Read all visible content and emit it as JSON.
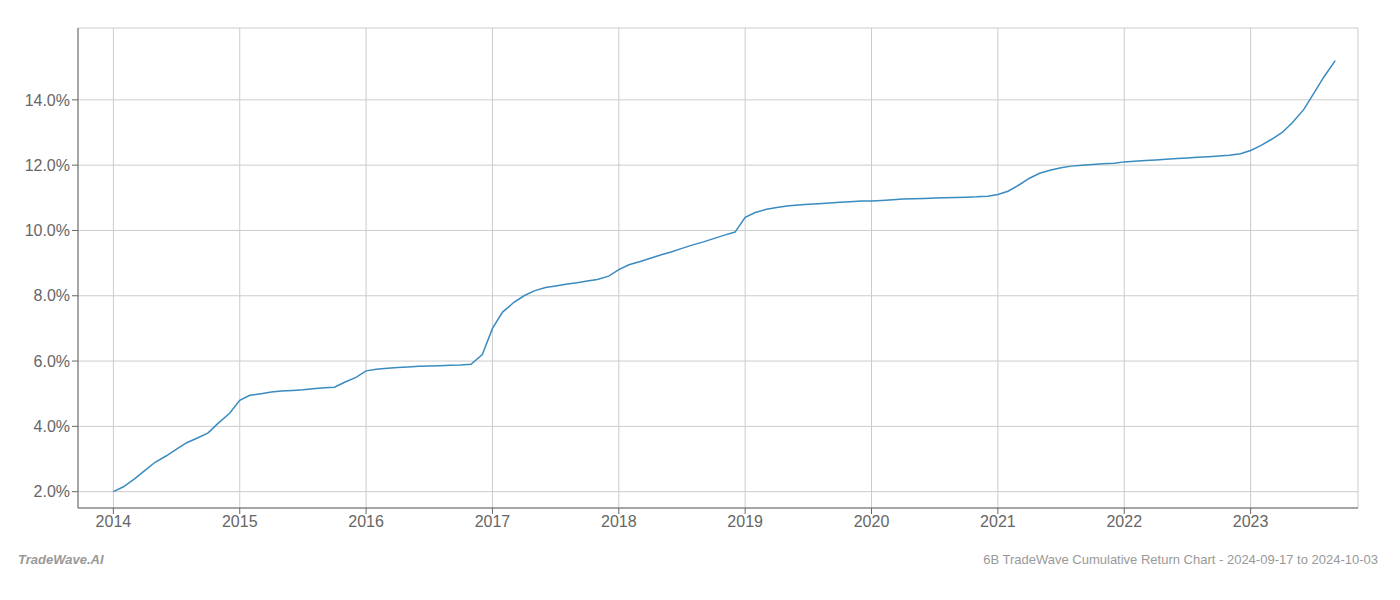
{
  "chart_data": {
    "type": "line",
    "title": "6B TradeWave Cumulative Return Chart - 2024-09-17 to 2024-10-03",
    "annotations": [
      "TradeWave.AI"
    ],
    "color": "#3a8bbf",
    "grid": true,
    "x": [
      2014.0,
      2014.08,
      2014.17,
      2014.25,
      2014.33,
      2014.42,
      2014.5,
      2014.58,
      2014.67,
      2014.75,
      2014.83,
      2014.92,
      2015.0,
      2015.08,
      2015.17,
      2015.25,
      2015.33,
      2015.42,
      2015.5,
      2015.58,
      2015.67,
      2015.75,
      2015.83,
      2015.92,
      2016.0,
      2016.08,
      2016.17,
      2016.25,
      2016.33,
      2016.42,
      2016.5,
      2016.58,
      2016.67,
      2016.75,
      2016.83,
      2016.92,
      2017.0,
      2017.08,
      2017.17,
      2017.25,
      2017.33,
      2017.42,
      2017.5,
      2017.58,
      2017.67,
      2017.75,
      2017.83,
      2017.92,
      2018.0,
      2018.08,
      2018.17,
      2018.25,
      2018.33,
      2018.42,
      2018.5,
      2018.58,
      2018.67,
      2018.75,
      2018.83,
      2018.92,
      2019.0,
      2019.08,
      2019.17,
      2019.25,
      2019.33,
      2019.42,
      2019.5,
      2019.58,
      2019.67,
      2019.75,
      2019.83,
      2019.92,
      2020.0,
      2020.08,
      2020.17,
      2020.25,
      2020.33,
      2020.42,
      2020.5,
      2020.58,
      2020.67,
      2020.75,
      2020.83,
      2020.92,
      2021.0,
      2021.08,
      2021.17,
      2021.25,
      2021.33,
      2021.42,
      2021.5,
      2021.58,
      2021.67,
      2021.75,
      2021.83,
      2021.92,
      2022.0,
      2022.08,
      2022.17,
      2022.25,
      2022.33,
      2022.42,
      2022.5,
      2022.58,
      2022.67,
      2022.75,
      2022.83,
      2022.92,
      2023.0,
      2023.08,
      2023.17,
      2023.25,
      2023.33,
      2023.42,
      2023.5,
      2023.58,
      2023.67
    ],
    "values": [
      2.0,
      2.15,
      2.4,
      2.65,
      2.9,
      3.1,
      3.3,
      3.5,
      3.65,
      3.8,
      4.1,
      4.4,
      4.8,
      4.95,
      5.0,
      5.05,
      5.08,
      5.1,
      5.12,
      5.15,
      5.18,
      5.2,
      5.35,
      5.5,
      5.7,
      5.75,
      5.78,
      5.8,
      5.82,
      5.84,
      5.85,
      5.86,
      5.87,
      5.88,
      5.9,
      6.2,
      7.0,
      7.5,
      7.8,
      8.0,
      8.15,
      8.25,
      8.3,
      8.35,
      8.4,
      8.45,
      8.5,
      8.6,
      8.8,
      8.95,
      9.05,
      9.15,
      9.25,
      9.35,
      9.45,
      9.55,
      9.65,
      9.75,
      9.85,
      9.95,
      10.4,
      10.55,
      10.65,
      10.7,
      10.75,
      10.78,
      10.8,
      10.82,
      10.84,
      10.86,
      10.88,
      10.9,
      10.9,
      10.92,
      10.94,
      10.96,
      10.97,
      10.98,
      10.99,
      11.0,
      11.01,
      11.02,
      11.03,
      11.05,
      11.1,
      11.2,
      11.4,
      11.6,
      11.75,
      11.85,
      11.92,
      11.97,
      12.0,
      12.02,
      12.04,
      12.06,
      12.1,
      12.12,
      12.14,
      12.16,
      12.18,
      12.2,
      12.22,
      12.24,
      12.26,
      12.28,
      12.3,
      12.35,
      12.45,
      12.6,
      12.8,
      13.0,
      13.3,
      13.7,
      14.2,
      14.7,
      15.2
    ],
    "xlim": [
      2013.72,
      2023.85
    ],
    "xticks": [
      2014,
      2015,
      2016,
      2017,
      2018,
      2019,
      2020,
      2021,
      2022,
      2023
    ],
    "ylim": [
      1.5,
      16.2
    ],
    "yticks": [
      {
        "value": 2.0,
        "label": "2.0%"
      },
      {
        "value": 4.0,
        "label": "4.0%"
      },
      {
        "value": 6.0,
        "label": "6.0%"
      },
      {
        "value": 8.0,
        "label": "8.0%"
      },
      {
        "value": 10.0,
        "label": "10.0%"
      },
      {
        "value": 12.0,
        "label": "12.0%"
      },
      {
        "value": 14.0,
        "label": "14.0%"
      }
    ]
  }
}
